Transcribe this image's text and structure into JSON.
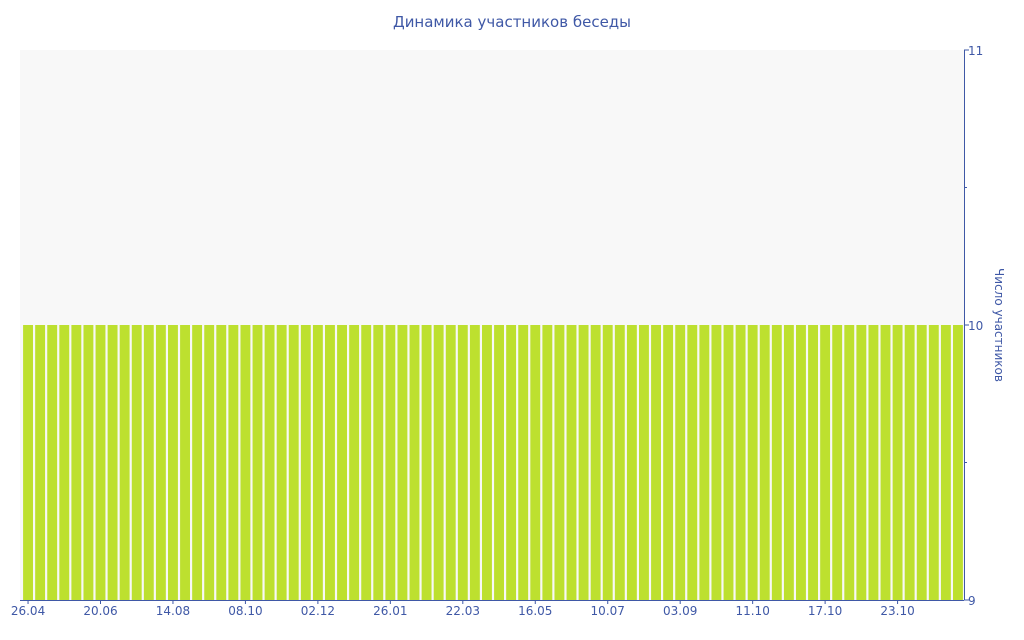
{
  "chart_data": {
    "type": "bar",
    "title": "Динамика участников беседы",
    "xlabel": "",
    "ylabel": "Число участников",
    "ylim": [
      9,
      11
    ],
    "yticks": [
      "9",
      "10",
      "11"
    ],
    "y_axis_side": "right",
    "grid": false,
    "categories": [
      "26.04",
      "",
      "",
      "",
      "",
      "",
      "20.06",
      "",
      "",
      "",
      "",
      "",
      "14.08",
      "",
      "",
      "",
      "",
      "",
      "08.10",
      "",
      "",
      "",
      "",
      "",
      "02.12",
      "",
      "",
      "",
      "",
      "",
      "26.01",
      "",
      "",
      "",
      "",
      "",
      "22.03",
      "",
      "",
      "",
      "",
      "",
      "16.05",
      "",
      "",
      "",
      "",
      "",
      "10.07",
      "",
      "",
      "",
      "",
      "",
      "03.09",
      "",
      "",
      "",
      "",
      "",
      "11.10",
      "",
      "",
      "",
      "",
      "",
      "17.10",
      "",
      "",
      "",
      "",
      "",
      "23.10",
      "",
      "",
      "",
      "",
      ""
    ],
    "values": [
      10,
      10,
      10,
      10,
      10,
      10,
      10,
      10,
      10,
      10,
      10,
      10,
      10,
      10,
      10,
      10,
      10,
      10,
      10,
      10,
      10,
      10,
      10,
      10,
      10,
      10,
      10,
      10,
      10,
      10,
      10,
      10,
      10,
      10,
      10,
      10,
      10,
      10,
      10,
      10,
      10,
      10,
      10,
      10,
      10,
      10,
      10,
      10,
      10,
      10,
      10,
      10,
      10,
      10,
      10,
      10,
      10,
      10,
      10,
      10,
      10,
      10,
      10,
      10,
      10,
      10,
      10,
      10,
      10,
      10,
      10,
      10,
      10,
      10,
      10,
      10,
      10,
      10
    ],
    "colors": {
      "bar": "#bde02f",
      "plot_bg": "#f8f8f8",
      "axis": "#3f58a6"
    }
  }
}
